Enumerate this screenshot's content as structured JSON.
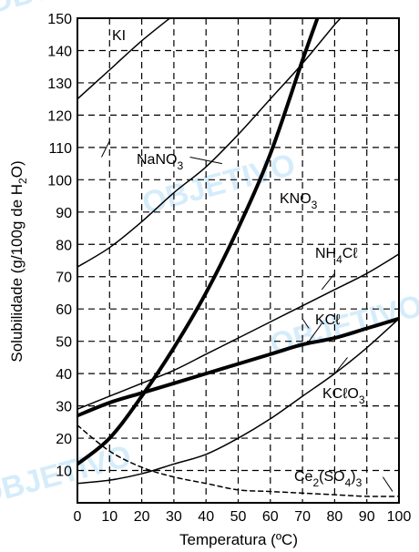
{
  "chart_data": {
    "type": "line",
    "title": "",
    "xlabel": "Temperatura (ºC)",
    "ylabel": "Solubilidade (g/100g de H₂O)",
    "xlim": [
      0,
      100
    ],
    "ylim": [
      0,
      150
    ],
    "xticks": [
      0,
      10,
      20,
      30,
      40,
      50,
      60,
      70,
      80,
      90,
      100
    ],
    "yticks": [
      10,
      20,
      30,
      40,
      50,
      60,
      70,
      80,
      90,
      100,
      110,
      120,
      130,
      140,
      150
    ],
    "grid": true,
    "series": [
      {
        "name": "KI",
        "style": "solid-thin",
        "points": [
          [
            0,
            125
          ],
          [
            10,
            134
          ],
          [
            20,
            143
          ],
          [
            30,
            151
          ]
        ]
      },
      {
        "name": "NaNO₃",
        "style": "solid-thin",
        "points": [
          [
            0,
            73
          ],
          [
            10,
            79
          ],
          [
            20,
            87
          ],
          [
            30,
            96
          ],
          [
            40,
            104
          ],
          [
            50,
            114
          ],
          [
            60,
            125
          ],
          [
            70,
            136
          ],
          [
            80,
            148
          ],
          [
            83,
            151
          ]
        ]
      },
      {
        "name": "KNO₃",
        "style": "solid-thick",
        "points": [
          [
            0,
            12
          ],
          [
            10,
            20
          ],
          [
            20,
            33
          ],
          [
            30,
            48
          ],
          [
            40,
            65
          ],
          [
            50,
            85
          ],
          [
            60,
            108
          ],
          [
            70,
            137
          ],
          [
            75,
            151
          ]
        ]
      },
      {
        "name": "NH₄Cℓ",
        "style": "solid-thin",
        "points": [
          [
            0,
            29
          ],
          [
            10,
            33
          ],
          [
            20,
            37
          ],
          [
            30,
            41
          ],
          [
            40,
            46
          ],
          [
            50,
            51
          ],
          [
            60,
            56
          ],
          [
            70,
            61
          ],
          [
            80,
            66
          ],
          [
            90,
            71
          ],
          [
            100,
            77
          ]
        ]
      },
      {
        "name": "KCℓ",
        "style": "solid-thick",
        "points": [
          [
            0,
            27
          ],
          [
            10,
            31
          ],
          [
            20,
            34
          ],
          [
            30,
            37
          ],
          [
            40,
            40
          ],
          [
            50,
            43
          ],
          [
            60,
            46
          ],
          [
            70,
            49
          ],
          [
            80,
            51
          ],
          [
            90,
            54
          ],
          [
            100,
            57
          ]
        ]
      },
      {
        "name": "KCℓO₃",
        "style": "solid-thin",
        "points": [
          [
            0,
            6
          ],
          [
            10,
            7
          ],
          [
            20,
            9
          ],
          [
            30,
            12
          ],
          [
            40,
            15
          ],
          [
            50,
            20
          ],
          [
            60,
            26
          ],
          [
            70,
            33
          ],
          [
            80,
            40
          ],
          [
            90,
            48
          ],
          [
            100,
            57
          ]
        ]
      },
      {
        "name": "Ce₂(SO₄)₃",
        "style": "dashed",
        "points": [
          [
            0,
            24
          ],
          [
            10,
            16
          ],
          [
            20,
            11
          ],
          [
            30,
            8
          ],
          [
            40,
            6
          ],
          [
            50,
            4
          ],
          [
            60,
            3.5
          ],
          [
            70,
            3
          ],
          [
            80,
            2.5
          ],
          [
            90,
            2
          ],
          [
            100,
            2
          ]
        ]
      }
    ],
    "labels": {
      "KI": "KI",
      "NaNO3_base": "NaNO",
      "NaNO3_sub": "3",
      "KNO3_base": "KNO",
      "KNO3_sub": "3",
      "NH4Cl_a": "NH",
      "NH4Cl_sub": "4",
      "NH4Cl_b": "Cℓ",
      "KCl": "KCℓ",
      "KClO3_base": "KCℓO",
      "KClO3_sub": "3",
      "Ce_a": "Ce",
      "Ce_sub1": "2",
      "Ce_b": "(SO",
      "Ce_sub2": "4",
      "Ce_c": ")",
      "Ce_sub3": "3"
    },
    "ylabel_parts": {
      "pre": "Solubilidade (g/100g de H",
      "sub": "2",
      "post": "O)"
    },
    "watermark": "OBJETIVO"
  }
}
